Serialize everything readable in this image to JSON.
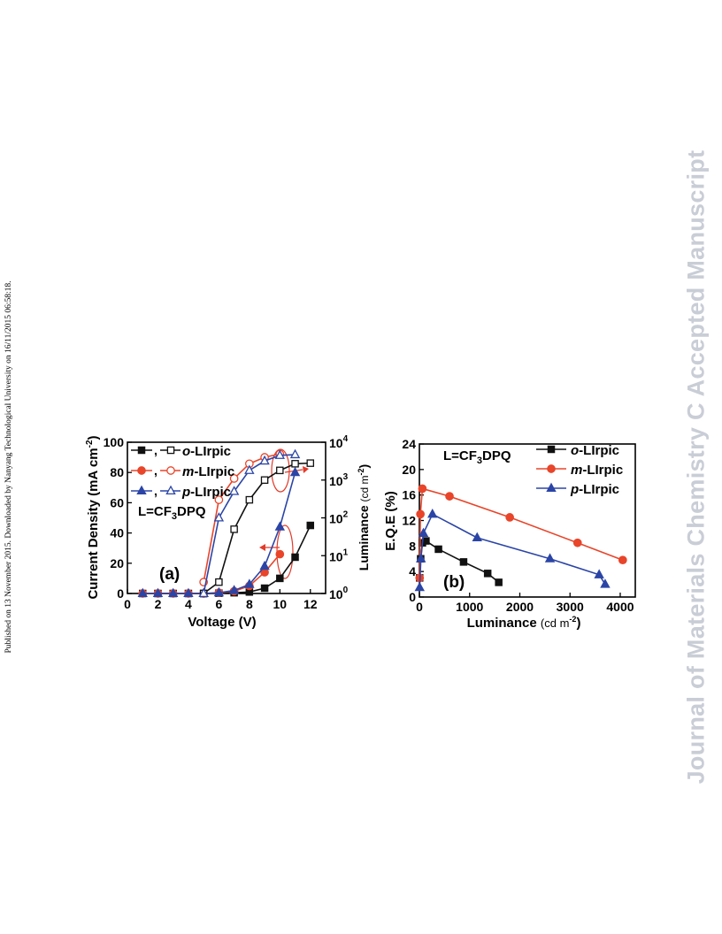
{
  "publication_note": "Published on 13 November 2015. Downloaded by Nanyang Technological University on 16/11/2015 06:58:18.",
  "watermark": "Journal of Materials Chemistry C Accepted Manuscript",
  "colors": {
    "o": "#111111",
    "m": "#e8452a",
    "p": "#2b45a6",
    "annot": "#e23b2a"
  },
  "panel_a": {
    "label": "(a)",
    "ligand_note": {
      "prefix": "L=CF",
      "sub": "3",
      "suffix": "DPQ"
    },
    "legend": [
      {
        "sep": ",",
        "prefix": "o",
        "suffix": "-LIrpic"
      },
      {
        "sep": ",",
        "prefix": "m",
        "suffix": "-LIrpic"
      },
      {
        "sep": ",",
        "prefix": "p",
        "suffix": "-LIrpic"
      }
    ],
    "xlabel": "Voltage (V)",
    "ylabel_left": {
      "main": "Current Density (mA cm",
      "sup": "-2",
      "tail": ")"
    },
    "ylabel_right": {
      "main": "Luminance",
      "unit": "(cd m",
      "sup": "-2",
      "tail": ")"
    },
    "x_ticks": [
      "0",
      "2",
      "4",
      "6",
      "8",
      "10",
      "12"
    ],
    "y_left_ticks": [
      "0",
      "20",
      "40",
      "60",
      "80",
      "100"
    ],
    "y_right_ticks": [
      {
        "base": "10",
        "exp": "0"
      },
      {
        "base": "10",
        "exp": "1"
      },
      {
        "base": "10",
        "exp": "2"
      },
      {
        "base": "10",
        "exp": "3"
      },
      {
        "base": "10",
        "exp": "4"
      }
    ]
  },
  "panel_b": {
    "label": "(b)",
    "ligand_note": {
      "prefix": "L=CF",
      "sub": "3",
      "suffix": "DPQ"
    },
    "legend": [
      {
        "prefix": "o",
        "suffix": "-LIrpic"
      },
      {
        "prefix": "m",
        "suffix": "-LIrpic"
      },
      {
        "prefix": "p",
        "suffix": "-LIrpic"
      }
    ],
    "xlabel": {
      "main": "Luminance",
      "unit": "(cd m",
      "sup": "-2",
      "tail": ")"
    },
    "ylabel": "E.Q.E (%)",
    "x_ticks": [
      "0",
      "1000",
      "2000",
      "3000",
      "4000"
    ],
    "y_ticks": [
      "0",
      "4",
      "8",
      "12",
      "16",
      "20",
      "24"
    ]
  },
  "chart_data": [
    {
      "type": "line",
      "xlim": [
        0,
        13
      ],
      "ylim_left": [
        0,
        100
      ],
      "ylim_right_log": [
        0,
        4
      ],
      "series": [
        {
          "name": "o-LIrpic",
          "axis": "left",
          "marker": "square-filled",
          "x": [
            1,
            2,
            3,
            4,
            5,
            6,
            7,
            8,
            9,
            10,
            11,
            12
          ],
          "y": [
            0,
            0,
            0,
            0,
            0,
            0.2,
            0.5,
            1,
            3.5,
            10,
            24,
            45
          ]
        },
        {
          "name": "m-LIrpic",
          "axis": "left",
          "marker": "circle-filled",
          "x": [
            1,
            2,
            3,
            4,
            5,
            6,
            7,
            8,
            9,
            10
          ],
          "y": [
            0,
            0,
            0,
            0,
            0,
            0.5,
            1.5,
            5,
            14,
            26
          ]
        },
        {
          "name": "p-LIrpic",
          "axis": "left",
          "marker": "triangle-filled",
          "x": [
            1,
            2,
            3,
            4,
            5,
            6,
            7,
            8,
            9,
            10,
            11
          ],
          "y": [
            0,
            0,
            0,
            0,
            0,
            0.5,
            2,
            6,
            18,
            44,
            80
          ]
        },
        {
          "name": "o-LIrpic",
          "axis": "right",
          "marker": "square-open",
          "x": [
            5,
            6,
            7,
            8,
            9,
            10,
            11,
            12
          ],
          "y": [
            1,
            2,
            50,
            300,
            1000,
            1800,
            2700,
            2800
          ]
        },
        {
          "name": "m-LIrpic",
          "axis": "right",
          "marker": "circle-open",
          "x": [
            5,
            6,
            7,
            8,
            9,
            10
          ],
          "y": [
            2,
            300,
            1100,
            2700,
            4000,
            4900
          ]
        },
        {
          "name": "p-LIrpic",
          "axis": "right",
          "marker": "triangle-open",
          "x": [
            5,
            6,
            7,
            8,
            9,
            10,
            11
          ],
          "y": [
            1,
            100,
            500,
            1800,
            3200,
            4500,
            4700
          ]
        }
      ]
    },
    {
      "type": "line",
      "xlim": [
        0,
        4300
      ],
      "ylim": [
        0,
        24
      ],
      "series": [
        {
          "name": "o-LIrpic",
          "marker": "square-filled",
          "x": [
            5,
            25,
            60,
            130,
            380,
            880,
            1360,
            1580
          ],
          "y": [
            3,
            6,
            8.5,
            8.8,
            7.5,
            5.5,
            3.7,
            2.3
          ]
        },
        {
          "name": "m-LIrpic",
          "marker": "circle-filled",
          "x": [
            5,
            20,
            60,
            600,
            1800,
            3150,
            4050
          ],
          "y": [
            3,
            13,
            17,
            15.8,
            12.5,
            8.5,
            5.8
          ]
        },
        {
          "name": "p-LIrpic",
          "marker": "triangle-filled",
          "x": [
            5,
            30,
            80,
            260,
            1150,
            2600,
            3580,
            3700
          ],
          "y": [
            1.5,
            6,
            10,
            13,
            9.3,
            6,
            3.5,
            2
          ]
        }
      ]
    }
  ]
}
